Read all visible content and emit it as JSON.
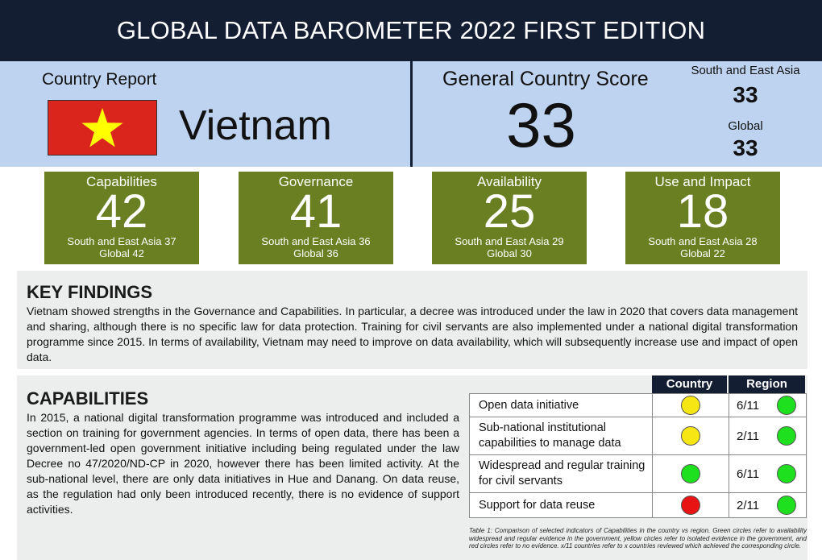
{
  "title": "GLOBAL DATA BAROMETER 2022 FIRST EDITION",
  "header": {
    "country_report_label": "Country Report",
    "country_name": "Vietnam",
    "gcs_label": "General Country Score",
    "gcs_value": "33",
    "region_label": "South and East Asia",
    "region_value": "33",
    "global_label": "Global",
    "global_value": "33",
    "flag_colors": {
      "field": "#da251d",
      "star": "#ffff00"
    }
  },
  "pillars": [
    {
      "name": "Capabilities",
      "score": "42",
      "region": "South and East Asia 37",
      "global": "Global 42"
    },
    {
      "name": "Governance",
      "score": "41",
      "region": "South and East Asia 36",
      "global": "Global 36"
    },
    {
      "name": "Availability",
      "score": "25",
      "region": "South and East Asia 29",
      "global": "Global 30"
    },
    {
      "name": "Use and Impact",
      "score": "18",
      "region": "South and East Asia 28",
      "global": "Global 22"
    }
  ],
  "key_findings": {
    "heading": "KEY FINDINGS",
    "text": "Vietnam showed strengths in the Governance and Capabilities. In particular, a decree was introduced under the law in 2020 that covers data management and sharing, although there is no specific law for data protection. Training for civil servants are also implemented under a national digital transformation programme since 2015. In terms of availability, Vietnam may need to improve on data availability, which will subsequently increase use and impact of open data."
  },
  "capabilities": {
    "heading": "CAPABILITIES",
    "text": "In 2015, a national digital transformation programme was introduced and included a section on training for government agencies. In terms of open data, there has been a government-led open government initiative including being regulated under the law Decree no 47/2020/ND-CP in 2020, however there has been limited activity. At the sub-national level, there are only data initiatives in Hue and Danang. On data reuse, as the regulation had only been introduced recently, there is no evidence of support activities."
  },
  "table": {
    "col_country": "Country",
    "col_region": "Region",
    "rows": [
      {
        "label": "Open data initiative",
        "country_status": "#f5e614",
        "region_count": "6/11",
        "region_status": "#1ee01e"
      },
      {
        "label": "Sub-national institutional capabilities to manage data",
        "country_status": "#f5e614",
        "region_count": "2/11",
        "region_status": "#1ee01e"
      },
      {
        "label": "Widespread and regular training for civil servants",
        "country_status": "#1ee01e",
        "region_count": "6/11",
        "region_status": "#1ee01e"
      },
      {
        "label": "Support for data reuse",
        "country_status": "#e81414",
        "region_count": "2/11",
        "region_status": "#1ee01e"
      }
    ],
    "caption": "Table 1: Comparison of selected indicators of Capabilities in the country vs region. Green circles refer to availability widespread and regular evidence in the government, yellow circles refer to isolated evidence in the government, and red circles refer to no evidence. x/11 countries refer to x countries reviewed which achieved the corresponding circle."
  },
  "colors": {
    "navy": "#131e33",
    "light_blue": "#bed3f0",
    "olive": "#6a7f22",
    "panel_gray": "#eceeed"
  }
}
